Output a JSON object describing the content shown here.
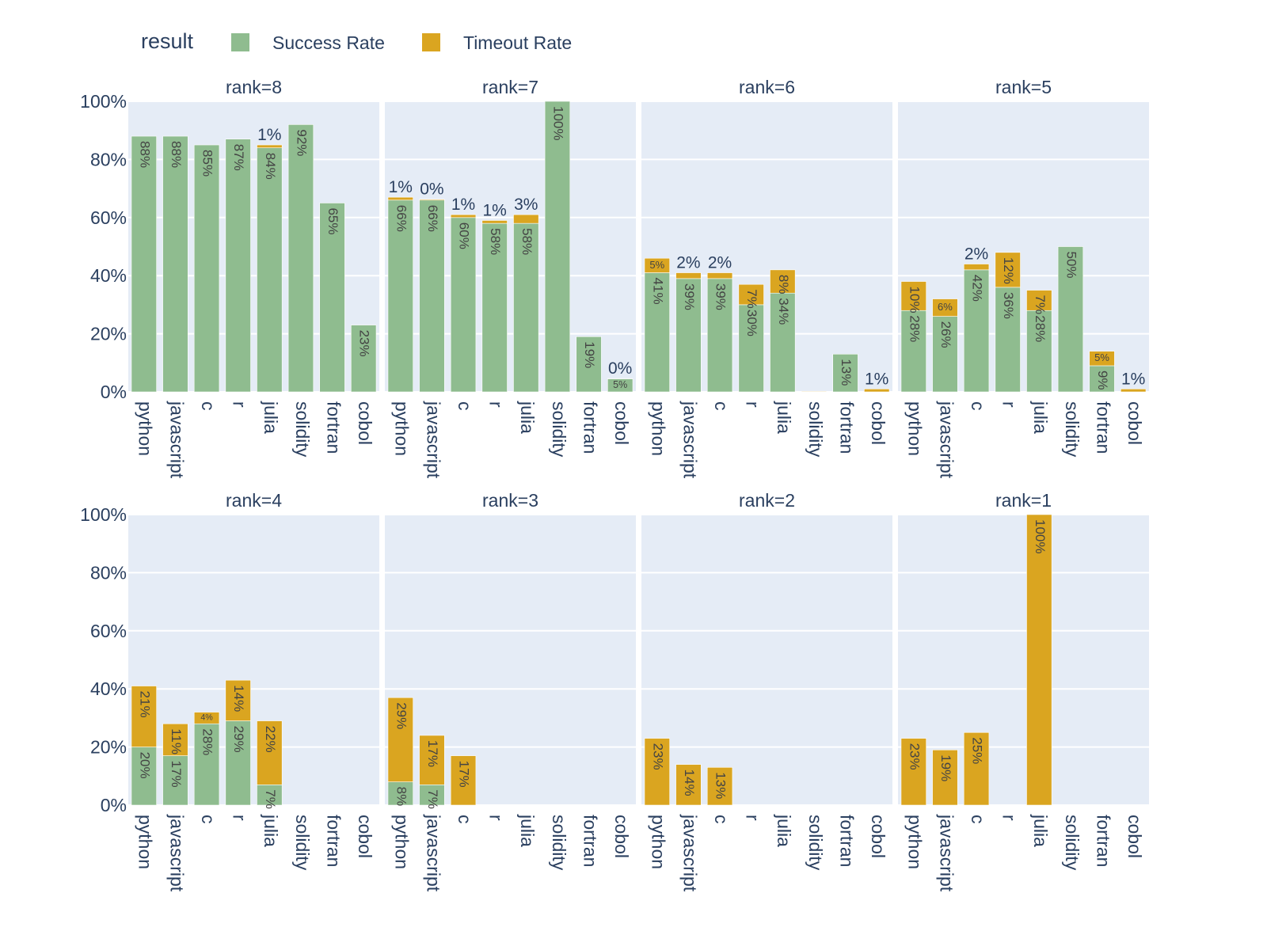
{
  "chart_data": {
    "type": "bar",
    "barmode": "stack",
    "legend": {
      "title": "result",
      "position": "top-left",
      "items": [
        {
          "name": "Success Rate",
          "color": "#8fbc8f"
        },
        {
          "name": "Timeout Rate",
          "color": "#daa520"
        }
      ]
    },
    "y_axis": {
      "ylim": [
        0,
        1
      ],
      "ticks": [
        "0%",
        "20%",
        "40%",
        "60%",
        "80%",
        "100%"
      ]
    },
    "categories": [
      "python",
      "javascript",
      "c",
      "r",
      "julia",
      "solidity",
      "fortran",
      "cobol"
    ],
    "panels": [
      {
        "title": "rank=8",
        "success": [
          0.88,
          0.88,
          0.85,
          0.87,
          0.84,
          0.92,
          0.65,
          0.23
        ],
        "timeout": [
          0,
          0,
          0,
          0,
          0.01,
          0,
          0,
          0
        ],
        "success_labels": [
          "88%",
          "88%",
          "85%",
          "87%",
          "84%",
          "92%",
          "65%",
          "23%"
        ],
        "timeout_labels": [
          "",
          "",
          "",
          "",
          "1%",
          "",
          "",
          ""
        ]
      },
      {
        "title": "rank=7",
        "success": [
          0.66,
          0.66,
          0.6,
          0.58,
          0.58,
          1.0,
          0.19,
          0.045
        ],
        "timeout": [
          0.01,
          0.003,
          0.01,
          0.01,
          0.03,
          0,
          0,
          0.001
        ],
        "success_labels": [
          "66%",
          "66%",
          "60%",
          "58%",
          "58%",
          "100%",
          "19%",
          "5%"
        ],
        "timeout_labels": [
          "1%",
          "0%",
          "1%",
          "1%",
          "3%",
          "",
          "",
          "0%"
        ]
      },
      {
        "title": "rank=6",
        "success": [
          0.41,
          0.39,
          0.39,
          0.3,
          0.34,
          0,
          0.13,
          0
        ],
        "timeout": [
          0.05,
          0.02,
          0.02,
          0.07,
          0.08,
          0.002,
          0,
          0.01
        ],
        "success_labels": [
          "41%",
          "39%",
          "39%",
          "30%",
          "34%",
          "",
          "13%",
          ""
        ],
        "timeout_labels": [
          "5%",
          "2%",
          "2%",
          "7%",
          "8%",
          "",
          "",
          "1%"
        ]
      },
      {
        "title": "rank=5",
        "success": [
          0.28,
          0.26,
          0.42,
          0.36,
          0.28,
          0.5,
          0.09,
          0
        ],
        "timeout": [
          0.1,
          0.06,
          0.02,
          0.12,
          0.07,
          0,
          0.05,
          0.01
        ],
        "success_labels": [
          "28%",
          "26%",
          "42%",
          "36%",
          "28%",
          "50%",
          "9%",
          ""
        ],
        "timeout_labels": [
          "10%",
          "6%",
          "2%",
          "12%",
          "7%",
          "",
          "5%",
          "1%"
        ]
      },
      {
        "title": "rank=4",
        "success": [
          0.2,
          0.17,
          0.28,
          0.29,
          0.07,
          0,
          0,
          0
        ],
        "timeout": [
          0.21,
          0.11,
          0.04,
          0.14,
          0.22,
          0,
          0,
          0
        ],
        "success_labels": [
          "20%",
          "17%",
          "28%",
          "29%",
          "7%",
          "",
          "",
          ""
        ],
        "timeout_labels": [
          "21%",
          "11%",
          "4%",
          "14%",
          "22%",
          "",
          "",
          ""
        ]
      },
      {
        "title": "rank=3",
        "success": [
          0.08,
          0.07,
          0,
          0,
          0,
          0,
          0,
          0
        ],
        "timeout": [
          0.29,
          0.17,
          0.17,
          0,
          0,
          0,
          0,
          0
        ],
        "success_labels": [
          "8%",
          "7%",
          "",
          "",
          "",
          "",
          "",
          ""
        ],
        "timeout_labels": [
          "29%",
          "17%",
          "17%",
          "",
          "",
          "",
          "",
          ""
        ]
      },
      {
        "title": "rank=2",
        "success": [
          0,
          0,
          0,
          0,
          0,
          0,
          0,
          0
        ],
        "timeout": [
          0.23,
          0.14,
          0.13,
          0,
          0,
          0,
          0,
          0
        ],
        "success_labels": [
          "",
          "",
          "",
          "",
          "",
          "",
          "",
          ""
        ],
        "timeout_labels": [
          "23%",
          "14%",
          "13%",
          "",
          "",
          "",
          "",
          ""
        ]
      },
      {
        "title": "rank=1",
        "success": [
          0,
          0,
          0,
          0,
          0,
          0,
          0,
          0
        ],
        "timeout": [
          0.23,
          0.19,
          0.25,
          0,
          1.0,
          0,
          0,
          0
        ],
        "success_labels": [
          "",
          "",
          "",
          "",
          "",
          "",
          "",
          ""
        ],
        "timeout_labels": [
          "23%",
          "19%",
          "25%",
          "",
          "100%",
          "",
          "",
          ""
        ]
      }
    ]
  }
}
